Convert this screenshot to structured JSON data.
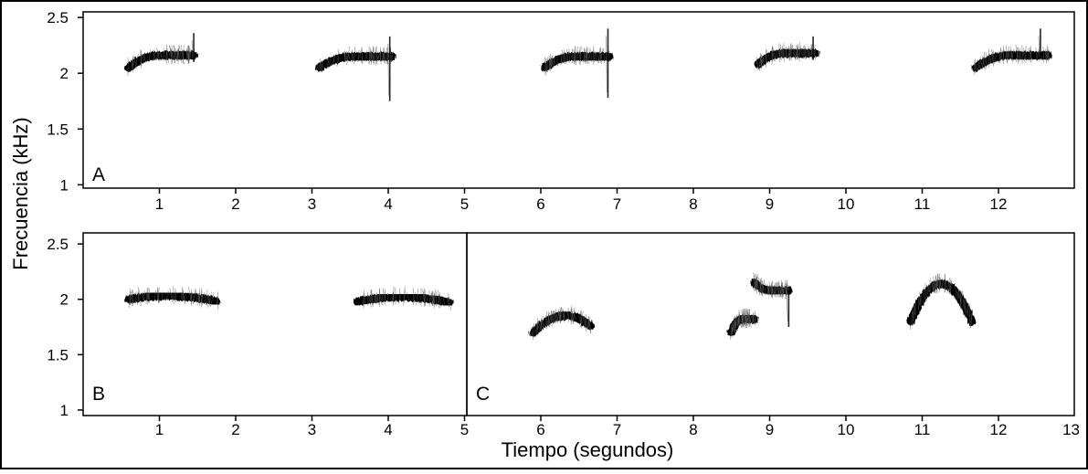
{
  "chart_data": [
    {
      "type": "spectrogram",
      "panel_label": "A",
      "xlim": [
        0,
        13
      ],
      "ylim": [
        1,
        2.5
      ],
      "x_ticks": [
        1,
        2,
        3,
        4,
        5,
        6,
        7,
        8,
        9,
        10,
        11,
        12,
        13
      ],
      "y_ticks": [
        1,
        1.5,
        2,
        2.5
      ],
      "y_tick_labels": [
        "1",
        "1.5",
        "2",
        "2.5"
      ],
      "notes": [
        {
          "t_start": 0.6,
          "t_end": 1.45,
          "f_start": 2.05,
          "f_end": 2.16,
          "spike_t": 1.45,
          "spike_f": [
            2.1,
            2.36
          ]
        },
        {
          "t_start": 3.1,
          "t_end": 4.05,
          "f_start": 2.05,
          "f_end": 2.15,
          "spike_t": 4.02,
          "spike_f": [
            1.75,
            2.33
          ]
        },
        {
          "t_start": 6.05,
          "t_end": 6.9,
          "f_start": 2.05,
          "f_end": 2.15,
          "spike_t": 6.88,
          "spike_f": [
            1.78,
            2.4
          ]
        },
        {
          "t_start": 8.85,
          "t_end": 9.6,
          "f_start": 2.08,
          "f_end": 2.18,
          "spike_t": 9.57,
          "spike_f": [
            2.12,
            2.33
          ]
        },
        {
          "t_start": 11.7,
          "t_end": 12.65,
          "f_start": 2.05,
          "f_end": 2.16,
          "spike_t": 12.55,
          "spike_f": [
            2.13,
            2.4
          ]
        }
      ]
    },
    {
      "type": "spectrogram",
      "panel_label": "B",
      "xlim": [
        0,
        5
      ],
      "ylim": [
        1,
        2.5
      ],
      "x_ticks": [
        1,
        2,
        3,
        4,
        5
      ],
      "y_ticks": [
        1,
        1.5,
        2,
        2.5
      ],
      "y_tick_labels": [
        "1",
        "1.5",
        "2",
        "2.5"
      ],
      "notes": [
        {
          "t_start": 0.6,
          "t_end": 1.75,
          "f_start": 2.0,
          "f_end": 1.98,
          "f_peak": 2.03
        },
        {
          "t_start": 3.6,
          "t_end": 4.8,
          "f_start": 1.98,
          "f_end": 1.97,
          "f_peak": 2.02
        }
      ]
    },
    {
      "type": "spectrogram",
      "panel_label": "C",
      "xlim": [
        5,
        13
      ],
      "ylim": [
        1,
        2.5
      ],
      "x_ticks": [
        6,
        7,
        8,
        9,
        10,
        11,
        12,
        13
      ],
      "y_ticks": [
        1,
        1.5,
        2,
        2.5
      ],
      "notes": [
        {
          "t_start": 5.9,
          "t_end": 6.65,
          "f_start": 1.7,
          "f_end": 1.76,
          "f_peak": 1.85
        },
        {
          "t_start": 8.5,
          "t_end": 8.8,
          "f_start": 1.7,
          "f_end": 1.82
        },
        {
          "t_start": 8.8,
          "t_end": 9.25,
          "f_start": 2.15,
          "f_end": 2.08,
          "spike_t": 9.25,
          "spike_f": [
            1.75,
            2.08
          ]
        },
        {
          "t_start": 10.85,
          "t_end": 11.65,
          "f_start": 1.8,
          "f_end": 1.8,
          "f_peak": 2.14
        }
      ]
    }
  ],
  "labels": {
    "x_axis_title": "Tiempo (segundos)",
    "y_axis_title": "Frecuencia (kHz)",
    "x_tick_13": "13"
  },
  "colors": {
    "ink": "#000000",
    "background": "#ffffff",
    "noise": "#555555"
  }
}
